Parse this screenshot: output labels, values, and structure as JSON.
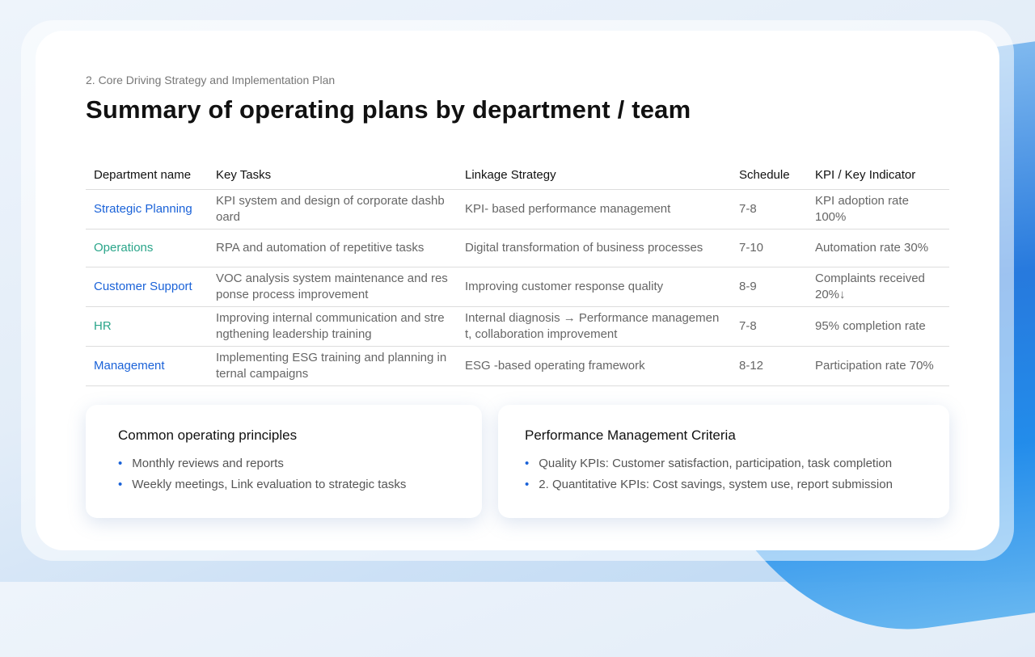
{
  "subtitle": "2. Core Driving Strategy and Implementation Plan",
  "title": "Summary of operating plans by department / team",
  "table": {
    "headers": [
      "Department name",
      "Key Tasks",
      "Linkage Strategy",
      "Schedule",
      "KPI / Key Indicator"
    ],
    "rows": [
      {
        "dept": "Strategic Planning",
        "color": "#1a62d8",
        "task": "KPI system and design of corporate dashboard",
        "strategy": "KPI- based performance management",
        "schedule": "7-8",
        "kpi": "KPI adoption rate 100%"
      },
      {
        "dept": "Operations",
        "color": "#2aa58a",
        "task": "RPA and automation of repetitive tasks",
        "strategy": "Digital transformation of business processes",
        "schedule": "7-10",
        "kpi": "Automation rate 30%"
      },
      {
        "dept": "Customer Support",
        "color": "#1a62d8",
        "task": "VOC analysis system maintenance and response process improvement",
        "strategy": "Improving customer response quality",
        "schedule": "8-9",
        "kpi": "Complaints received 20%↓"
      },
      {
        "dept": "HR",
        "color": "#2aa58a",
        "task": "Improving internal communication and strengthening leadership training",
        "strategy": "Internal diagnosis → Performance management, collaboration improvement",
        "schedule": "7-8",
        "kpi": "95% completion rate"
      },
      {
        "dept": "Management",
        "color": "#1a62d8",
        "task": "Implementing ESG training and planning internal campaigns",
        "strategy": "ESG -based operating framework",
        "schedule": "8-12",
        "kpi": "Participation rate 70%"
      }
    ]
  },
  "principles": {
    "title": "Common operating principles",
    "items": [
      "Monthly reviews and reports",
      "Weekly meetings, Link evaluation to strategic tasks"
    ]
  },
  "criteria": {
    "title": "Performance Management Criteria",
    "items": [
      "Quality KPIs: Customer satisfaction, participation, task completion",
      "2. Quantitative KPIs: Cost savings, system use, report submission"
    ]
  }
}
